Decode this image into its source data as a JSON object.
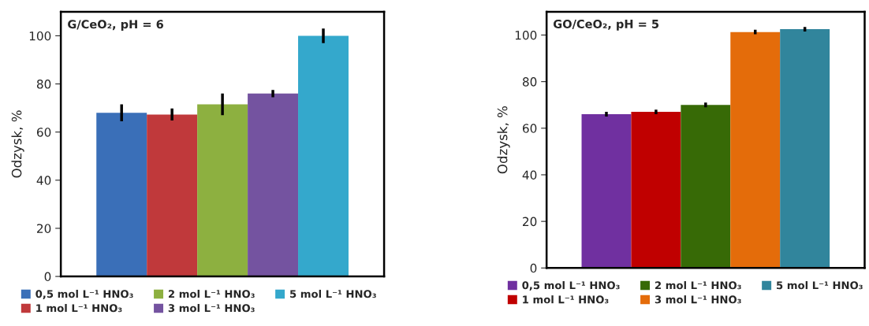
{
  "chart_data": [
    {
      "type": "bar",
      "title": "G/CeO₂, pH = 6",
      "ylabel": "Odzysk, %",
      "categories": [
        null
      ],
      "ylim": [
        0,
        110
      ],
      "yticks": [
        0,
        20,
        40,
        60,
        80,
        100
      ],
      "grid": false,
      "legend": "bottom",
      "series": [
        {
          "name": "0,5 mol L⁻¹ HNO₃",
          "color": "#3a6fb8",
          "values": [
            68
          ],
          "errors": [
            3.5
          ]
        },
        {
          "name": "1 mol L⁻¹ HNO₃",
          "color": "#c0393b",
          "values": [
            67.3
          ],
          "errors": [
            2.5
          ]
        },
        {
          "name": "2 mol L⁻¹ HNO₃",
          "color": "#8db040",
          "values": [
            71.5
          ],
          "errors": [
            4.5
          ]
        },
        {
          "name": "3 mol L⁻¹ HNO₃",
          "color": "#7453a0",
          "values": [
            76
          ],
          "errors": [
            1.5
          ]
        },
        {
          "name": "5 mol L⁻¹ HNO₃",
          "color": "#34a8cc",
          "values": [
            100
          ],
          "errors": [
            3
          ]
        }
      ]
    },
    {
      "type": "bar",
      "title": "GO/CeO₂, pH = 5",
      "ylabel": "Odzysk, %",
      "categories": [
        null
      ],
      "ylim": [
        0,
        110
      ],
      "yticks": [
        0,
        20,
        40,
        60,
        80,
        100
      ],
      "grid": false,
      "legend": "bottom",
      "series": [
        {
          "name": "0,5 mol L⁻¹ HNO₃",
          "color": "#7030a0",
          "values": [
            66
          ],
          "errors": [
            1
          ]
        },
        {
          "name": "1 mol L⁻¹ HNO₃",
          "color": "#c00000",
          "values": [
            67
          ],
          "errors": [
            1
          ]
        },
        {
          "name": "2 mol L⁻¹ HNO₃",
          "color": "#376a06",
          "values": [
            70
          ],
          "errors": [
            1
          ]
        },
        {
          "name": "3 mol L⁻¹ HNO₃",
          "color": "#e46c0a",
          "values": [
            101.3
          ],
          "errors": [
            1
          ]
        },
        {
          "name": "5 mol L⁻¹ HNO₃",
          "color": "#31859c",
          "values": [
            102.5
          ],
          "errors": [
            1
          ]
        }
      ]
    }
  ]
}
